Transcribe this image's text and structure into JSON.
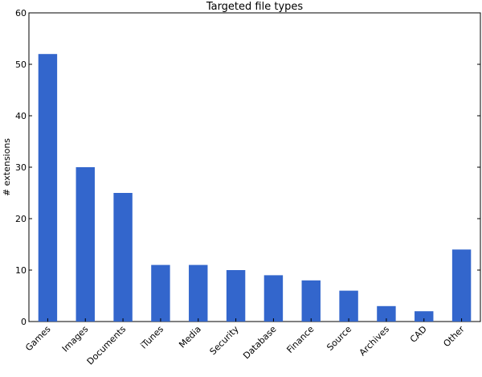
{
  "chart_data": {
    "type": "bar",
    "title": "Targeted file types",
    "xlabel": "",
    "ylabel": "# extensions",
    "categories": [
      "Games",
      "Images",
      "Documents",
      "iTunes",
      "Media",
      "Security",
      "Database",
      "Finance",
      "Source",
      "Archives",
      "CAD",
      "Other"
    ],
    "values": [
      52,
      30,
      25,
      11,
      11,
      10,
      9,
      8,
      6,
      3,
      2,
      14
    ],
    "ylim": [
      0,
      60
    ],
    "yticks": [
      0,
      10,
      20,
      30,
      40,
      50,
      60
    ],
    "grid": false,
    "bar_color": "#3366cc"
  }
}
